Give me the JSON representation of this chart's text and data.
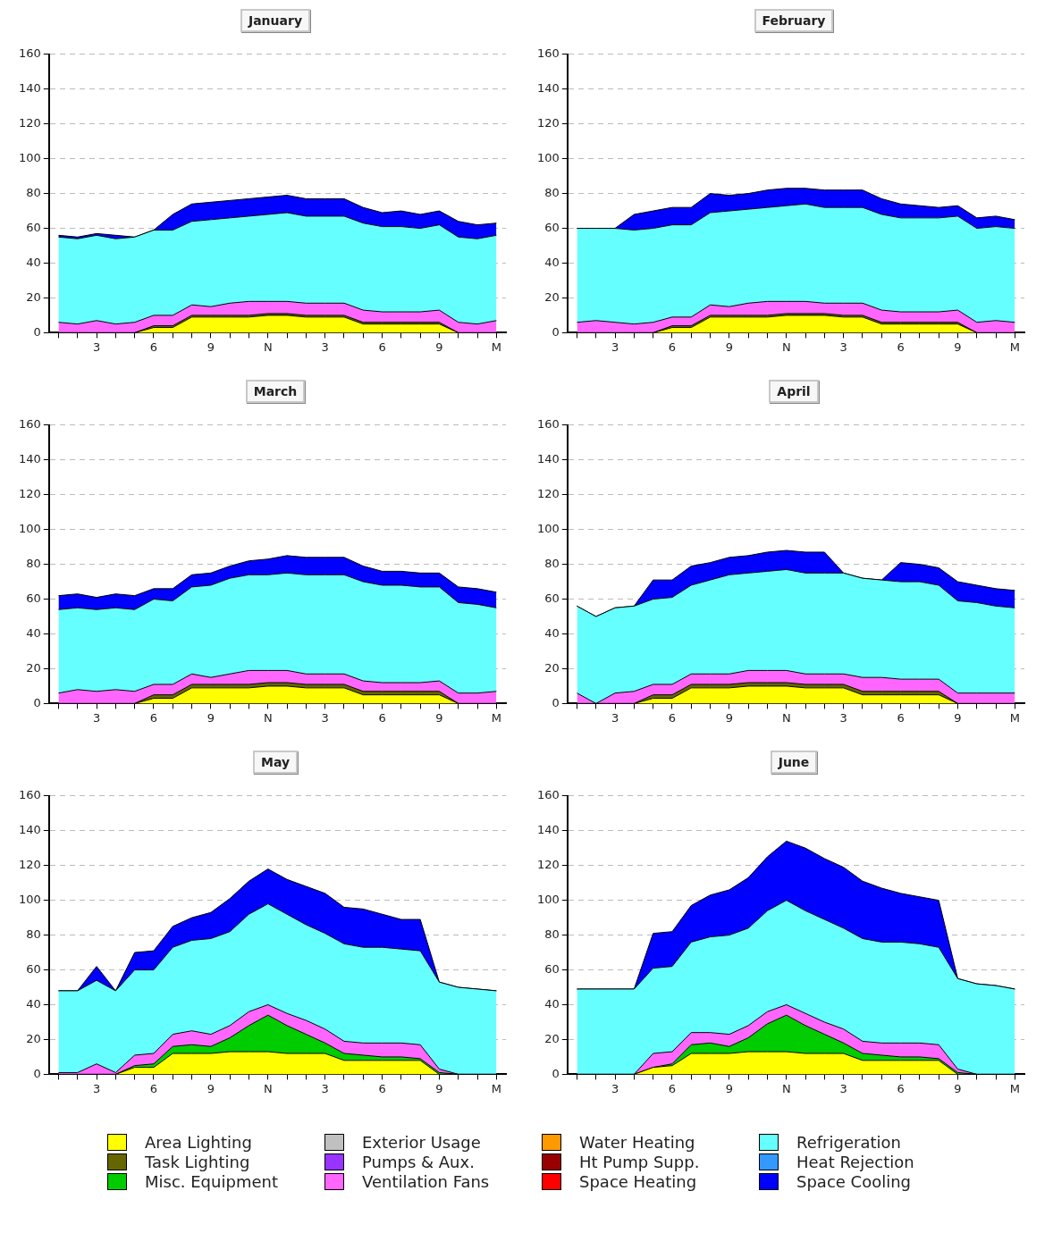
{
  "chart_data": [
    {
      "type": "area",
      "title": "January",
      "stacked": true,
      "categories": [
        null,
        null,
        "3",
        null,
        null,
        "6",
        null,
        null,
        "9",
        null,
        null,
        "N",
        null,
        null,
        "3",
        null,
        null,
        "6",
        null,
        null,
        "9",
        null,
        null,
        "M"
      ],
      "ylim": [
        0,
        160
      ],
      "yticks": [
        0,
        20,
        40,
        60,
        80,
        100,
        120,
        140,
        160
      ],
      "grid": "y",
      "marker": "none",
      "series": [
        {
          "color": "#ffff00",
          "values": [
            0,
            0,
            0,
            0,
            0,
            3,
            3,
            9,
            9,
            9,
            9,
            10,
            10,
            9,
            9,
            9,
            5,
            5,
            5,
            5,
            5,
            0,
            0,
            0
          ]
        },
        {
          "color": "#666600",
          "values": [
            0,
            0,
            0,
            0,
            0,
            1,
            1,
            1,
            1,
            1,
            1,
            1,
            1,
            1,
            1,
            1,
            1,
            1,
            1,
            1,
            1,
            0,
            0,
            0
          ]
        },
        {
          "color": "#ff66ff",
          "values": [
            6,
            5,
            7,
            5,
            6,
            6,
            6,
            6,
            5,
            7,
            8,
            7,
            7,
            7,
            7,
            7,
            7,
            6,
            6,
            6,
            7,
            6,
            5,
            7
          ]
        },
        {
          "color": "#66ffff",
          "values": [
            49,
            49,
            49,
            49,
            49,
            49,
            49,
            48,
            50,
            49,
            49,
            50,
            51,
            50,
            50,
            50,
            50,
            49,
            49,
            48,
            49,
            49,
            49,
            49
          ]
        },
        {
          "color": "#0000ff",
          "values": [
            1,
            1,
            1,
            2,
            0,
            0,
            9,
            10,
            10,
            10,
            10,
            10,
            10,
            10,
            10,
            10,
            9,
            8,
            9,
            8,
            8,
            9,
            8,
            7
          ]
        }
      ]
    },
    {
      "type": "area",
      "title": "February",
      "stacked": true,
      "categories": [
        null,
        null,
        "3",
        null,
        null,
        "6",
        null,
        null,
        "9",
        null,
        null,
        "N",
        null,
        null,
        "3",
        null,
        null,
        "6",
        null,
        null,
        "9",
        null,
        null,
        "M"
      ],
      "ylim": [
        0,
        160
      ],
      "yticks": [
        0,
        20,
        40,
        60,
        80,
        100,
        120,
        140,
        160
      ],
      "grid": "y",
      "marker": "none",
      "series": [
        {
          "color": "#ffff00",
          "values": [
            0,
            0,
            0,
            0,
            0,
            3,
            3,
            9,
            9,
            9,
            9,
            10,
            10,
            10,
            9,
            9,
            5,
            5,
            5,
            5,
            5,
            0,
            0,
            0
          ]
        },
        {
          "color": "#666600",
          "values": [
            0,
            0,
            0,
            0,
            0,
            1,
            1,
            1,
            1,
            1,
            1,
            1,
            1,
            1,
            1,
            1,
            1,
            1,
            1,
            1,
            1,
            0,
            0,
            0
          ]
        },
        {
          "color": "#ff66ff",
          "values": [
            6,
            7,
            6,
            5,
            6,
            5,
            5,
            6,
            5,
            7,
            8,
            7,
            7,
            6,
            7,
            7,
            7,
            6,
            6,
            6,
            7,
            6,
            7,
            6
          ]
        },
        {
          "color": "#66ffff",
          "values": [
            54,
            53,
            54,
            54,
            54,
            53,
            53,
            53,
            55,
            54,
            54,
            55,
            56,
            55,
            55,
            55,
            55,
            54,
            54,
            54,
            54,
            54,
            54,
            54
          ]
        },
        {
          "color": "#0000ff",
          "values": [
            0,
            0,
            0,
            9,
            10,
            10,
            10,
            11,
            9,
            9,
            10,
            10,
            9,
            10,
            10,
            10,
            9,
            8,
            7,
            6,
            6,
            6,
            6,
            5
          ]
        }
      ]
    },
    {
      "type": "area",
      "title": "March",
      "stacked": true,
      "categories": [
        null,
        null,
        "3",
        null,
        null,
        "6",
        null,
        null,
        "9",
        null,
        null,
        "N",
        null,
        null,
        "3",
        null,
        null,
        "6",
        null,
        null,
        "9",
        null,
        null,
        "M"
      ],
      "ylim": [
        0,
        160
      ],
      "yticks": [
        0,
        20,
        40,
        60,
        80,
        100,
        120,
        140,
        160
      ],
      "grid": "y",
      "marker": "none",
      "series": [
        {
          "color": "#ffff00",
          "values": [
            0,
            0,
            0,
            0,
            0,
            3,
            3,
            9,
            9,
            9,
            9,
            10,
            10,
            9,
            9,
            9,
            5,
            5,
            5,
            5,
            5,
            0,
            0,
            0
          ]
        },
        {
          "color": "#666600",
          "values": [
            0,
            0,
            0,
            0,
            0,
            2,
            2,
            2,
            2,
            2,
            2,
            2,
            2,
            2,
            2,
            2,
            2,
            2,
            2,
            2,
            2,
            0,
            0,
            0
          ]
        },
        {
          "color": "#ff66ff",
          "values": [
            6,
            8,
            7,
            8,
            7,
            6,
            6,
            6,
            4,
            6,
            8,
            7,
            7,
            6,
            6,
            6,
            6,
            5,
            5,
            5,
            6,
            6,
            6,
            7
          ]
        },
        {
          "color": "#66ffff",
          "values": [
            48,
            47,
            47,
            47,
            47,
            49,
            48,
            50,
            53,
            55,
            55,
            55,
            56,
            57,
            57,
            57,
            57,
            56,
            56,
            55,
            54,
            52,
            51,
            48
          ]
        },
        {
          "color": "#0000ff",
          "values": [
            8,
            8,
            7,
            8,
            8,
            6,
            7,
            7,
            7,
            7,
            8,
            9,
            10,
            10,
            10,
            10,
            9,
            8,
            8,
            8,
            8,
            9,
            9,
            9
          ]
        }
      ]
    },
    {
      "type": "area",
      "title": "April",
      "stacked": true,
      "categories": [
        null,
        null,
        "3",
        null,
        null,
        "6",
        null,
        null,
        "9",
        null,
        null,
        "N",
        null,
        null,
        "3",
        null,
        null,
        "6",
        null,
        null,
        "9",
        null,
        null,
        "M"
      ],
      "ylim": [
        0,
        160
      ],
      "yticks": [
        0,
        20,
        40,
        60,
        80,
        100,
        120,
        140,
        160
      ],
      "grid": "y",
      "marker": "none",
      "series": [
        {
          "color": "#ffff00",
          "values": [
            0,
            0,
            0,
            0,
            3,
            3,
            9,
            9,
            9,
            10,
            10,
            10,
            9,
            9,
            9,
            5,
            5,
            5,
            5,
            5,
            0,
            0,
            0,
            0
          ]
        },
        {
          "color": "#666600",
          "values": [
            0,
            0,
            0,
            0,
            2,
            2,
            2,
            2,
            2,
            2,
            2,
            2,
            2,
            2,
            2,
            2,
            2,
            2,
            2,
            2,
            0,
            0,
            0,
            0
          ]
        },
        {
          "color": "#ff66ff",
          "values": [
            6,
            0,
            6,
            7,
            6,
            6,
            6,
            6,
            6,
            7,
            7,
            7,
            6,
            6,
            6,
            8,
            8,
            7,
            7,
            7,
            6,
            6,
            6,
            6
          ]
        },
        {
          "color": "#66ffff",
          "values": [
            50,
            50,
            49,
            49,
            49,
            50,
            51,
            54,
            57,
            56,
            57,
            58,
            58,
            58,
            58,
            57,
            56,
            56,
            56,
            54,
            53,
            52,
            50,
            49
          ]
        },
        {
          "color": "#0000ff",
          "values": [
            0,
            0,
            0,
            0,
            11,
            10,
            11,
            10,
            10,
            10,
            11,
            11,
            12,
            12,
            0,
            0,
            0,
            11,
            10,
            10,
            11,
            10,
            10,
            10
          ]
        }
      ]
    },
    {
      "type": "area",
      "title": "May",
      "stacked": true,
      "categories": [
        null,
        null,
        "3",
        null,
        null,
        "6",
        null,
        null,
        "9",
        null,
        null,
        "N",
        null,
        null,
        "3",
        null,
        null,
        "6",
        null,
        null,
        "9",
        null,
        null,
        "M"
      ],
      "ylim": [
        0,
        160
      ],
      "yticks": [
        0,
        20,
        40,
        60,
        80,
        100,
        120,
        140,
        160
      ],
      "grid": "y",
      "marker": "none",
      "series": [
        {
          "color": "#ffff00",
          "values": [
            0,
            0,
            0,
            0,
            4,
            4,
            12,
            12,
            12,
            13,
            13,
            13,
            12,
            12,
            12,
            8,
            8,
            8,
            8,
            8,
            0,
            0,
            0,
            0
          ]
        },
        {
          "color": "#00cc00",
          "values": [
            0,
            0,
            0,
            0,
            1,
            2,
            4,
            5,
            4,
            8,
            15,
            21,
            16,
            11,
            6,
            4,
            3,
            2,
            2,
            1,
            1,
            0,
            0,
            0
          ]
        },
        {
          "color": "#ff66ff",
          "values": [
            1,
            1,
            6,
            1,
            6,
            6,
            7,
            8,
            7,
            7,
            8,
            6,
            7,
            8,
            8,
            7,
            7,
            8,
            8,
            8,
            2,
            0,
            0,
            0
          ]
        },
        {
          "color": "#66ffff",
          "values": [
            47,
            47,
            48,
            47,
            49,
            48,
            50,
            52,
            55,
            54,
            56,
            58,
            57,
            55,
            55,
            56,
            55,
            55,
            54,
            54,
            50,
            50,
            49,
            48
          ]
        },
        {
          "color": "#0000ff",
          "values": [
            0,
            0,
            8,
            0,
            10,
            11,
            12,
            13,
            15,
            19,
            19,
            20,
            20,
            22,
            23,
            21,
            22,
            19,
            17,
            18,
            0,
            0,
            0,
            0
          ]
        }
      ]
    },
    {
      "type": "area",
      "title": "June",
      "stacked": true,
      "categories": [
        null,
        null,
        "3",
        null,
        null,
        "6",
        null,
        null,
        "9",
        null,
        null,
        "N",
        null,
        null,
        "3",
        null,
        null,
        "6",
        null,
        null,
        "9",
        null,
        null,
        "M"
      ],
      "ylim": [
        0,
        160
      ],
      "yticks": [
        0,
        20,
        40,
        60,
        80,
        100,
        120,
        140,
        160
      ],
      "grid": "y",
      "legend": "bottom",
      "marker": "none",
      "series": [
        {
          "name": "Area Lighting",
          "color": "#ffff00",
          "values": [
            0,
            0,
            0,
            0,
            4,
            5,
            12,
            12,
            12,
            13,
            13,
            13,
            12,
            12,
            12,
            8,
            8,
            8,
            8,
            8,
            0,
            0,
            0,
            0
          ]
        },
        {
          "name": "Task Lighting",
          "color": "#666600",
          "values": [
            null,
            null,
            null,
            null,
            null,
            null,
            null,
            null,
            null,
            null,
            null,
            null,
            null,
            null,
            null,
            null,
            null,
            null,
            null,
            null,
            null,
            null,
            null,
            null
          ]
        },
        {
          "name": "Misc. Equipment",
          "color": "#00cc00",
          "values": [
            0,
            0,
            0,
            0,
            0,
            1,
            5,
            6,
            4,
            8,
            16,
            21,
            16,
            11,
            6,
            4,
            3,
            2,
            2,
            1,
            1,
            0,
            0,
            0
          ]
        },
        {
          "name": "Exterior Usage",
          "color": "#c0c0c0",
          "values": [
            null,
            null,
            null,
            null,
            null,
            null,
            null,
            null,
            null,
            null,
            null,
            null,
            null,
            null,
            null,
            null,
            null,
            null,
            null,
            null,
            null,
            null,
            null,
            null
          ]
        },
        {
          "name": "Pumps & Aux.",
          "color": "#9933ff",
          "values": [
            null,
            null,
            null,
            null,
            null,
            null,
            null,
            null,
            null,
            null,
            null,
            null,
            null,
            null,
            null,
            null,
            null,
            null,
            null,
            null,
            null,
            null,
            null,
            null
          ]
        },
        {
          "name": "Ventilation Fans",
          "color": "#ff66ff",
          "values": [
            0,
            0,
            0,
            0,
            8,
            7,
            7,
            6,
            7,
            7,
            7,
            6,
            7,
            7,
            8,
            7,
            7,
            8,
            8,
            8,
            2,
            0,
            0,
            0
          ]
        },
        {
          "name": "Water Heating",
          "color": "#ff9900",
          "values": [
            null,
            null,
            null,
            null,
            null,
            null,
            null,
            null,
            null,
            null,
            null,
            null,
            null,
            null,
            null,
            null,
            null,
            null,
            null,
            null,
            null,
            null,
            null,
            null
          ]
        },
        {
          "name": "Ht Pump Supp.",
          "color": "#990000",
          "values": [
            null,
            null,
            null,
            null,
            null,
            null,
            null,
            null,
            null,
            null,
            null,
            null,
            null,
            null,
            null,
            null,
            null,
            null,
            null,
            null,
            null,
            null,
            null,
            null
          ]
        },
        {
          "name": "Space Heating",
          "color": "#ff0000",
          "values": [
            null,
            null,
            null,
            null,
            null,
            null,
            null,
            null,
            null,
            null,
            null,
            null,
            null,
            null,
            null,
            null,
            null,
            null,
            null,
            null,
            null,
            null,
            null,
            null
          ]
        },
        {
          "name": "Refrigeration",
          "color": "#66ffff",
          "values": [
            49,
            49,
            49,
            49,
            49,
            49,
            52,
            55,
            57,
            56,
            58,
            60,
            59,
            59,
            58,
            59,
            58,
            58,
            57,
            56,
            52,
            52,
            51,
            49
          ]
        },
        {
          "name": "Heat Rejection",
          "color": "#3399ff",
          "values": [
            null,
            null,
            null,
            null,
            null,
            null,
            null,
            null,
            null,
            null,
            null,
            null,
            null,
            null,
            null,
            null,
            null,
            null,
            null,
            null,
            null,
            null,
            null,
            null
          ]
        },
        {
          "name": "Space Cooling",
          "color": "#0000ff",
          "values": [
            0,
            0,
            0,
            0,
            20,
            20,
            21,
            24,
            26,
            29,
            31,
            34,
            36,
            35,
            35,
            33,
            31,
            28,
            27,
            27,
            0,
            0,
            0,
            0
          ]
        }
      ]
    }
  ]
}
